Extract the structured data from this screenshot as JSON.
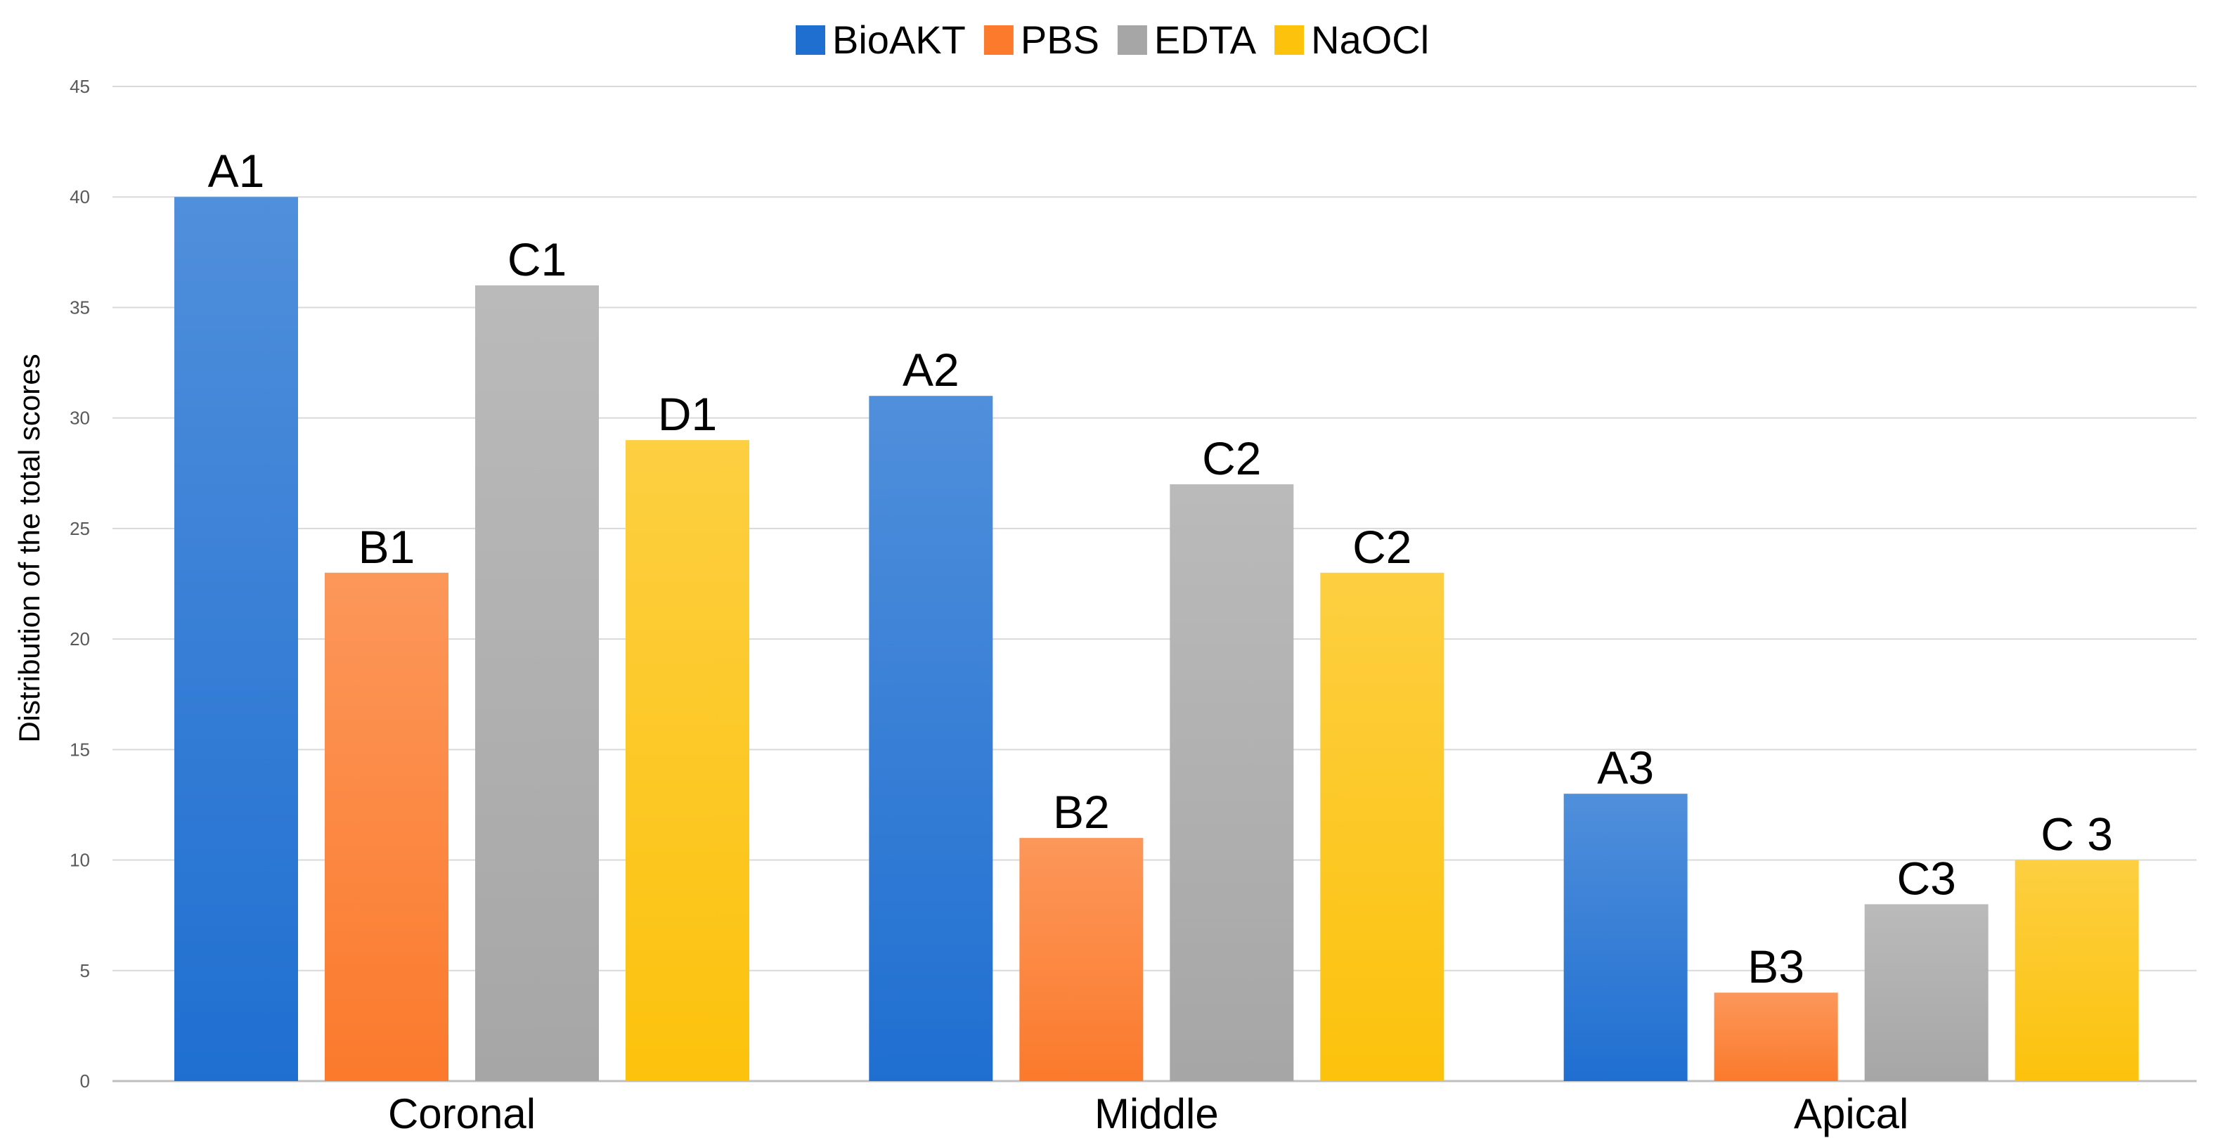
{
  "chart_data": {
    "type": "bar",
    "title": "",
    "xlabel": "",
    "ylabel": "Distribution of the total scores",
    "ylim": [
      0,
      45
    ],
    "yticks": [
      0,
      5,
      10,
      15,
      20,
      25,
      30,
      35,
      40,
      45
    ],
    "grid": true,
    "legend_position": "top-center",
    "categories": [
      "Coronal",
      "Middle",
      "Apical"
    ],
    "series": [
      {
        "name": "BioAKT",
        "color": "#1f6fd1",
        "values": [
          40,
          31,
          13
        ],
        "labels": [
          "A1",
          "A2",
          "A3"
        ]
      },
      {
        "name": "PBS",
        "color": "#fb7a2c",
        "values": [
          23,
          11,
          4
        ],
        "labels": [
          "B1",
          "B2",
          "B3"
        ]
      },
      {
        "name": "EDTA",
        "color": "#a6a6a6",
        "values": [
          36,
          27,
          8
        ],
        "labels": [
          "C1",
          "C2",
          "C3"
        ]
      },
      {
        "name": "NaOCl",
        "color": "#fcc20c",
        "values": [
          29,
          23,
          10
        ],
        "labels": [
          "D1",
          "C2",
          "C 3"
        ]
      }
    ]
  }
}
